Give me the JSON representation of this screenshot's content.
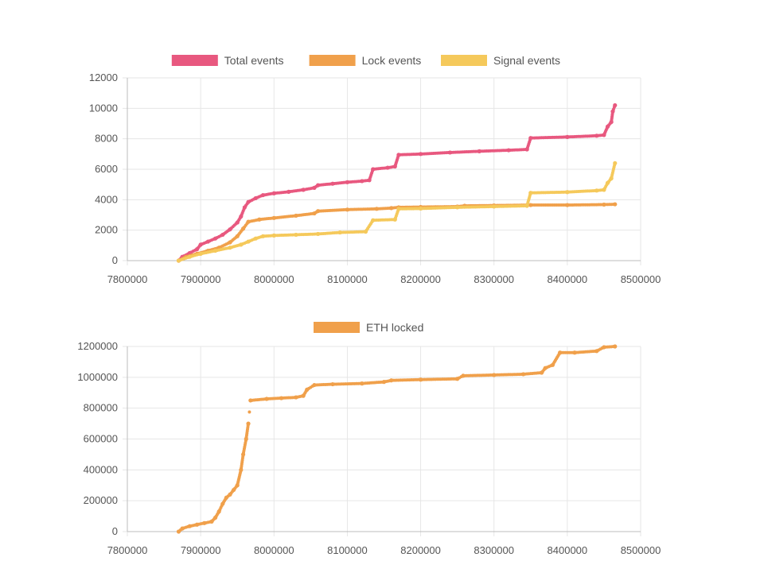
{
  "chart_data": [
    {
      "type": "scatter",
      "title": "",
      "xlabel": "",
      "ylabel": "",
      "xlim": [
        7800000,
        8500000
      ],
      "ylim": [
        0,
        12000
      ],
      "x_ticks": [
        7800000,
        7900000,
        8000000,
        8100000,
        8200000,
        8300000,
        8400000,
        8500000
      ],
      "y_ticks": [
        0,
        2000,
        4000,
        6000,
        8000,
        10000,
        12000
      ],
      "grid": true,
      "legend_position": "top-center",
      "series": [
        {
          "name": "Total events",
          "color": "#e8587f",
          "points": [
            [
              7870000,
              0
            ],
            [
              7875000,
              250
            ],
            [
              7885000,
              500
            ],
            [
              7895000,
              750
            ],
            [
              7900000,
              1050
            ],
            [
              7910000,
              1250
            ],
            [
              7920000,
              1450
            ],
            [
              7930000,
              1700
            ],
            [
              7940000,
              2050
            ],
            [
              7950000,
              2500
            ],
            [
              7955000,
              2900
            ],
            [
              7960000,
              3500
            ],
            [
              7965000,
              3850
            ],
            [
              7975000,
              4100
            ],
            [
              7985000,
              4300
            ],
            [
              8000000,
              4420
            ],
            [
              8020000,
              4520
            ],
            [
              8040000,
              4650
            ],
            [
              8055000,
              4780
            ],
            [
              8060000,
              4950
            ],
            [
              8080000,
              5050
            ],
            [
              8100000,
              5150
            ],
            [
              8120000,
              5220
            ],
            [
              8130000,
              5280
            ],
            [
              8135000,
              6000
            ],
            [
              8155000,
              6100
            ],
            [
              8165000,
              6180
            ],
            [
              8170000,
              6950
            ],
            [
              8200000,
              7000
            ],
            [
              8240000,
              7100
            ],
            [
              8280000,
              7180
            ],
            [
              8320000,
              7250
            ],
            [
              8345000,
              7300
            ],
            [
              8350000,
              8050
            ],
            [
              8400000,
              8120
            ],
            [
              8440000,
              8200
            ],
            [
              8450000,
              8250
            ],
            [
              8455000,
              8800
            ],
            [
              8460000,
              9100
            ],
            [
              8462000,
              9800
            ],
            [
              8465000,
              10200
            ]
          ]
        },
        {
          "name": "Lock events",
          "color": "#f0a04b",
          "points": [
            [
              7870000,
              0
            ],
            [
              7880000,
              250
            ],
            [
              7895000,
              450
            ],
            [
              7910000,
              650
            ],
            [
              7925000,
              850
            ],
            [
              7940000,
              1200
            ],
            [
              7950000,
              1600
            ],
            [
              7958000,
              2100
            ],
            [
              7965000,
              2550
            ],
            [
              7980000,
              2700
            ],
            [
              8000000,
              2800
            ],
            [
              8030000,
              2950
            ],
            [
              8055000,
              3100
            ],
            [
              8060000,
              3250
            ],
            [
              8100000,
              3350
            ],
            [
              8140000,
              3400
            ],
            [
              8160000,
              3450
            ],
            [
              8170000,
              3500
            ],
            [
              8200000,
              3520
            ],
            [
              8250000,
              3550
            ],
            [
              8260000,
              3600
            ],
            [
              8300000,
              3620
            ],
            [
              8350000,
              3650
            ],
            [
              8400000,
              3650
            ],
            [
              8450000,
              3680
            ],
            [
              8465000,
              3700
            ]
          ]
        },
        {
          "name": "Signal events",
          "color": "#f5c95b",
          "points": [
            [
              7870000,
              0
            ],
            [
              7885000,
              250
            ],
            [
              7900000,
              450
            ],
            [
              7920000,
              650
            ],
            [
              7940000,
              850
            ],
            [
              7955000,
              1050
            ],
            [
              7965000,
              1250
            ],
            [
              7975000,
              1450
            ],
            [
              7985000,
              1600
            ],
            [
              8000000,
              1650
            ],
            [
              8030000,
              1700
            ],
            [
              8060000,
              1750
            ],
            [
              8090000,
              1850
            ],
            [
              8125000,
              1900
            ],
            [
              8135000,
              2650
            ],
            [
              8165000,
              2700
            ],
            [
              8170000,
              3400
            ],
            [
              8200000,
              3420
            ],
            [
              8250000,
              3500
            ],
            [
              8300000,
              3550
            ],
            [
              8345000,
              3600
            ],
            [
              8350000,
              4450
            ],
            [
              8400000,
              4500
            ],
            [
              8440000,
              4600
            ],
            [
              8450000,
              4650
            ],
            [
              8455000,
              5100
            ],
            [
              8460000,
              5400
            ],
            [
              8465000,
              6400
            ]
          ]
        }
      ]
    },
    {
      "type": "scatter",
      "title": "",
      "xlabel": "",
      "ylabel": "",
      "xlim": [
        7800000,
        8500000
      ],
      "ylim": [
        0,
        1200000
      ],
      "x_ticks": [
        7800000,
        7900000,
        8000000,
        8100000,
        8200000,
        8300000,
        8400000,
        8500000
      ],
      "y_ticks": [
        0,
        200000,
        400000,
        600000,
        800000,
        1000000,
        1200000
      ],
      "grid": true,
      "legend_position": "top-center",
      "series": [
        {
          "name": "ETH locked",
          "color": "#f0a04b",
          "points": [
            [
              7870000,
              0
            ],
            [
              7875000,
              20000
            ],
            [
              7885000,
              35000
            ],
            [
              7895000,
              45000
            ],
            [
              7905000,
              55000
            ],
            [
              7915000,
              65000
            ],
            [
              7920000,
              90000
            ],
            [
              7925000,
              130000
            ],
            [
              7930000,
              180000
            ],
            [
              7935000,
              220000
            ],
            [
              7940000,
              240000
            ],
            [
              7945000,
              270000
            ],
            [
              7950000,
              300000
            ],
            [
              7955000,
              400000
            ],
            [
              7958000,
              500000
            ],
            [
              7962000,
              600000
            ],
            [
              7965000,
              700000
            ],
            [
              7968000,
              850000
            ],
            [
              7990000,
              860000
            ],
            [
              8010000,
              865000
            ],
            [
              8030000,
              870000
            ],
            [
              8040000,
              880000
            ],
            [
              8045000,
              920000
            ],
            [
              8055000,
              950000
            ],
            [
              8080000,
              955000
            ],
            [
              8120000,
              960000
            ],
            [
              8150000,
              970000
            ],
            [
              8160000,
              980000
            ],
            [
              8200000,
              985000
            ],
            [
              8250000,
              990000
            ],
            [
              8258000,
              1010000
            ],
            [
              8300000,
              1015000
            ],
            [
              8340000,
              1020000
            ],
            [
              8365000,
              1030000
            ],
            [
              8370000,
              1060000
            ],
            [
              8380000,
              1080000
            ],
            [
              8390000,
              1160000
            ],
            [
              8410000,
              1160000
            ],
            [
              8440000,
              1170000
            ],
            [
              8450000,
              1195000
            ],
            [
              8465000,
              1200000
            ]
          ]
        }
      ]
    }
  ]
}
